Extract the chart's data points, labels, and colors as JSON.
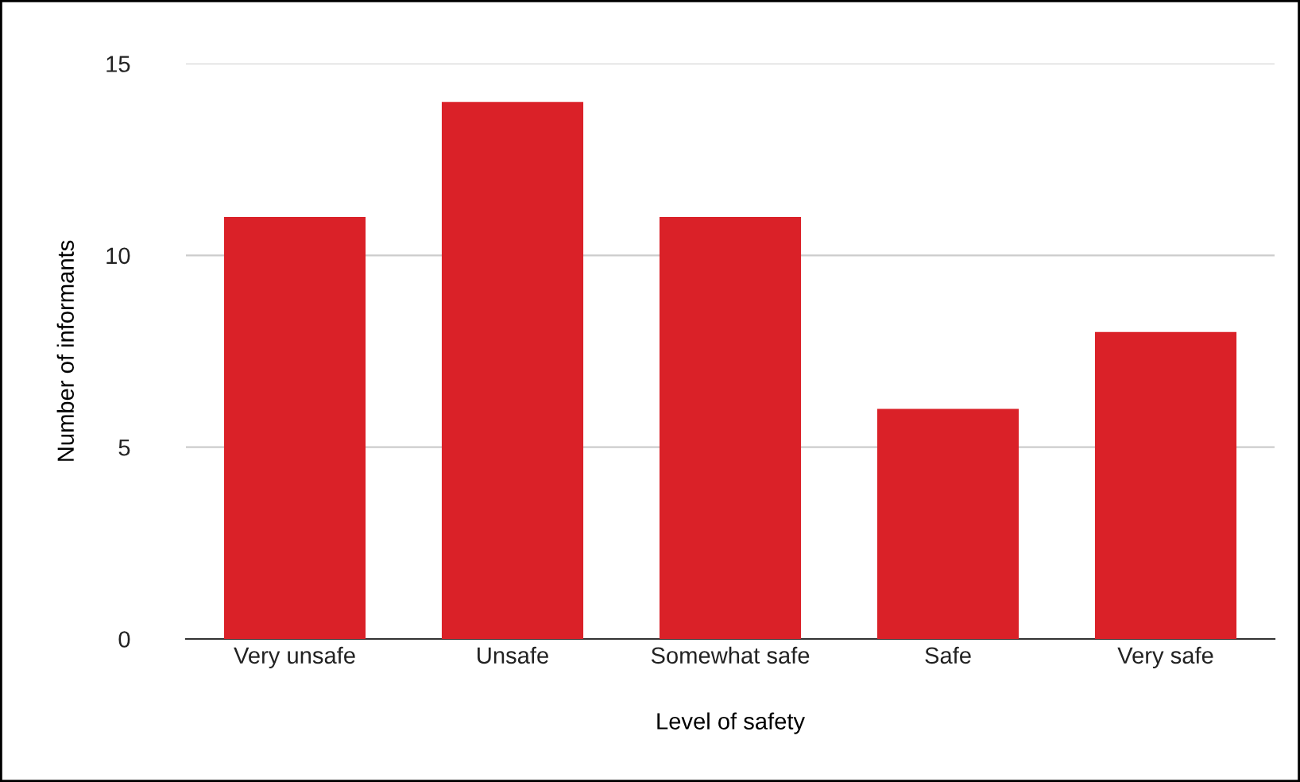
{
  "chart_data": {
    "type": "bar",
    "xlabel": "Level of safety",
    "ylabel": "Number of informants",
    "categories": [
      "Very unsafe",
      "Unsafe",
      "Somewhat safe",
      "Safe",
      "Very safe"
    ],
    "values": [
      11,
      14,
      11,
      6,
      8
    ],
    "color": "#da2128",
    "ylim": [
      0,
      15
    ],
    "yticks": [
      0,
      5,
      10,
      15
    ],
    "grid": "y"
  }
}
